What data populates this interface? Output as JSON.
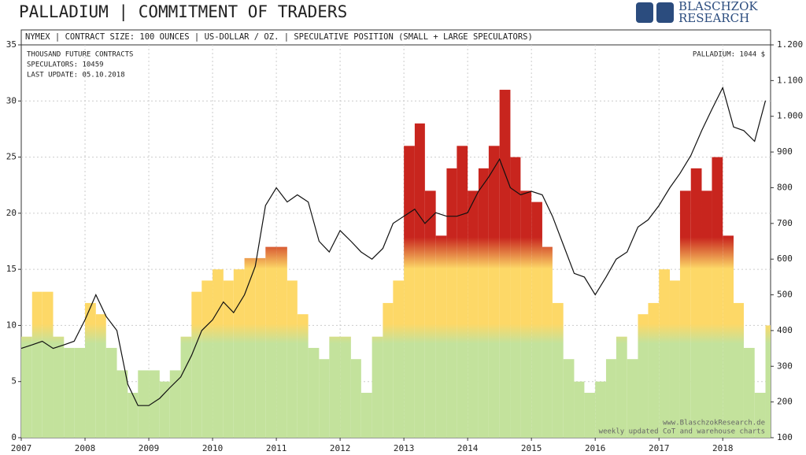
{
  "chart_data": {
    "type": "bar",
    "title": "PALLADIUM | COMMITMENT OF TRADERS",
    "brand": [
      "BLASCHZOK",
      "RESEARCH"
    ],
    "subtitle": "NYMEX | CONTRACT SIZE: 100 OUNCES | US-DOLLAR / OZ. | SPECULATIVE POSITION (SMALL + LARGE SPECULATORS)",
    "annotations": [
      "THOUSAND FUTURE CONTRACTS",
      "SPECULATORS: 10459",
      "LAST UPDATE: 05.10.2018"
    ],
    "price_label": "PALLADIUM: 1044 $",
    "footer": [
      "www.BlaschzokResearch.de",
      "weekly updated CoT and warehouse charts"
    ],
    "x": [
      2007.0,
      2007.17,
      2007.33,
      2007.5,
      2007.67,
      2007.83,
      2008.0,
      2008.17,
      2008.33,
      2008.5,
      2008.67,
      2008.83,
      2009.0,
      2009.17,
      2009.33,
      2009.5,
      2009.67,
      2009.83,
      2010.0,
      2010.17,
      2010.33,
      2010.5,
      2010.67,
      2010.83,
      2011.0,
      2011.17,
      2011.33,
      2011.5,
      2011.67,
      2011.83,
      2012.0,
      2012.17,
      2012.33,
      2012.5,
      2012.67,
      2012.83,
      2013.0,
      2013.17,
      2013.33,
      2013.5,
      2013.67,
      2013.83,
      2014.0,
      2014.17,
      2014.33,
      2014.5,
      2014.67,
      2014.83,
      2015.0,
      2015.17,
      2015.33,
      2015.5,
      2015.67,
      2015.83,
      2016.0,
      2016.17,
      2016.33,
      2016.5,
      2016.67,
      2016.83,
      2017.0,
      2017.17,
      2017.33,
      2017.5,
      2017.67,
      2017.83,
      2018.0,
      2018.17,
      2018.33,
      2018.5,
      2018.67
    ],
    "series": [
      {
        "type": "bar",
        "colors": [
          "#c3e29c",
          "#fdd867",
          "#c8251e"
        ],
        "values": [
          9,
          13,
          13,
          9,
          8,
          8,
          12,
          11,
          8,
          6,
          4,
          6,
          6,
          5,
          6,
          9,
          13,
          14,
          15,
          14,
          15,
          16,
          16,
          17,
          17,
          14,
          11,
          8,
          7,
          9,
          9,
          7,
          4,
          9,
          12,
          14,
          26,
          28,
          22,
          18,
          24,
          26,
          22,
          24,
          26,
          31,
          25,
          22,
          21,
          17,
          12,
          7,
          5,
          4,
          5,
          7,
          9,
          7,
          11,
          12,
          15,
          14,
          22,
          24,
          22,
          25,
          18,
          12,
          8,
          4,
          10
        ]
      },
      {
        "type": "line",
        "axis": "y2",
        "color": "#111111",
        "values": [
          350,
          360,
          370,
          350,
          360,
          370,
          430,
          500,
          440,
          400,
          250,
          190,
          190,
          210,
          240,
          270,
          330,
          400,
          430,
          480,
          450,
          500,
          580,
          750,
          800,
          760,
          780,
          760,
          650,
          620,
          680,
          650,
          620,
          600,
          630,
          700,
          720,
          740,
          700,
          730,
          720,
          720,
          730,
          790,
          830,
          880,
          800,
          780,
          790,
          780,
          720,
          640,
          560,
          550,
          500,
          550,
          600,
          620,
          690,
          710,
          750,
          800,
          840,
          890,
          960,
          1020,
          1080,
          970,
          960,
          930,
          1044
        ]
      }
    ],
    "xlim": [
      2007,
      2018.75
    ],
    "xticks": [
      2007,
      2008,
      2009,
      2010,
      2011,
      2012,
      2013,
      2014,
      2015,
      2016,
      2017,
      2018
    ],
    "ylim": [
      0,
      35
    ],
    "yticks": [
      0,
      5,
      10,
      15,
      20,
      25,
      30,
      35
    ],
    "y2lim": [
      100,
      1200
    ],
    "y2ticks": [
      {
        "value": 1200,
        "label": "1.200"
      },
      {
        "value": 1100,
        "label": "1.100"
      },
      {
        "value": 1000,
        "label": "1.000"
      },
      900,
      800,
      700,
      600,
      500,
      400,
      300,
      200,
      100
    ],
    "grid": true
  }
}
